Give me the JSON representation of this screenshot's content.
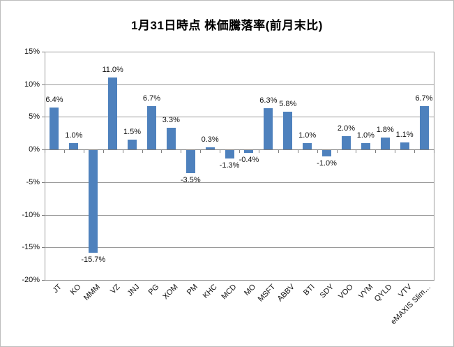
{
  "chart_data": {
    "type": "bar",
    "title": "1月31日時点 株価騰落率(前月末比)",
    "categories": [
      "JT",
      "KO",
      "MMM",
      "VZ",
      "JNJ",
      "PG",
      "XOM",
      "PM",
      "KHC",
      "MCD",
      "MO",
      "MSFT",
      "ABBV",
      "BTI",
      "SDY",
      "VOO",
      "VYM",
      "QYLD",
      "VTV",
      "eMAXIS Slim…"
    ],
    "values": [
      6.4,
      1.0,
      -15.7,
      11.0,
      1.5,
      6.7,
      3.3,
      -3.5,
      0.3,
      -1.3,
      -0.4,
      6.3,
      5.8,
      1.0,
      -1.0,
      2.0,
      1.0,
      1.8,
      1.1,
      6.7
    ],
    "data_labels": [
      "6.4%",
      "1.0%",
      "-15.7%",
      "11.0%",
      "1.5%",
      "6.7%",
      "3.3%",
      "-3.5%",
      "0.3%",
      "-1.3%",
      "-0.4%",
      "6.3%",
      "5.8%",
      "1.0%",
      "-1.0%",
      "2.0%",
      "1.0%",
      "1.8%",
      "1.1%",
      "6.7%"
    ],
    "xlabel": "",
    "ylabel": "",
    "y_axis": {
      "min": -20,
      "max": 15,
      "tick_values": [
        15,
        10,
        5,
        0,
        -5,
        -10,
        -15,
        -20
      ],
      "tick_labels": [
        "15%",
        "10%",
        "5%",
        "0%",
        "-5%",
        "-10%",
        "-15%",
        "-20%"
      ]
    },
    "grid": true,
    "legend": "none",
    "colors": {
      "bar": "#4E81BD",
      "gridline": "#9a9a9a",
      "axis": "#7f7f7f",
      "text": "#111111",
      "frame": "#bdbdbd",
      "background": "#ffffff"
    }
  }
}
